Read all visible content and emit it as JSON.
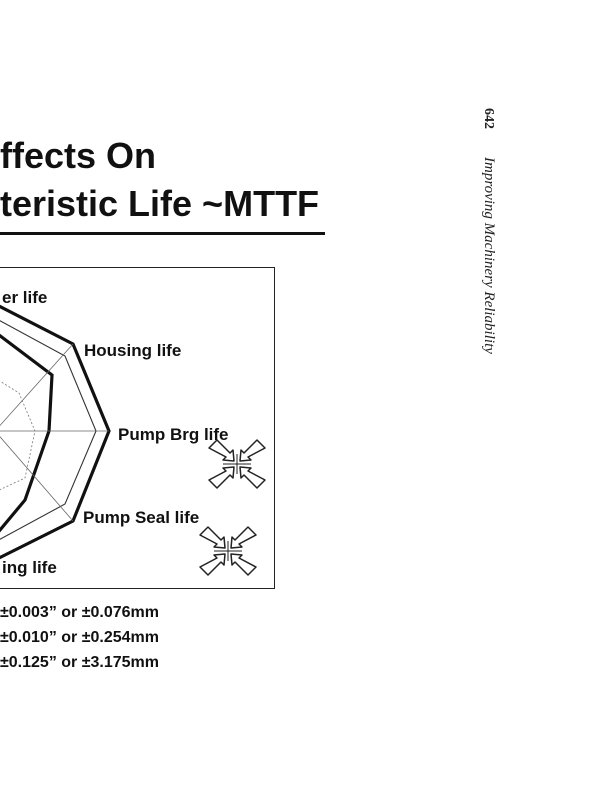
{
  "page": {
    "number": "642",
    "running_title": "Improving Machinery Reliability"
  },
  "slide": {
    "title_line1": "ffects On",
    "title_line2": "teristic Life ~MTTF"
  },
  "chart_data": {
    "type": "radar",
    "axis_labels": [
      "er life",
      "Housing life",
      "Pump Brg life",
      "Pump Seal life",
      "ing life"
    ],
    "legend": [
      "±0.003” or ±0.076mm",
      "±0.010” or ±0.254mm",
      "±0.125” or ±3.175mm"
    ]
  }
}
